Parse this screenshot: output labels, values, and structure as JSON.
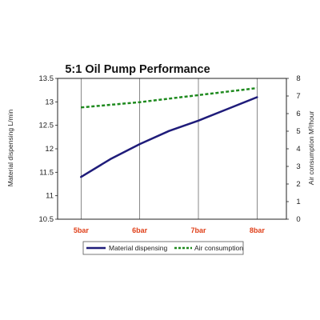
{
  "chart_data": {
    "type": "line",
    "title": "5:1 Oil Pump Performance",
    "categories": [
      "5bar",
      "6bar",
      "7bar",
      "8bar"
    ],
    "x": [
      5,
      6,
      7,
      8
    ],
    "xlim": [
      4.6,
      8.5
    ],
    "ylabel_left": "Material dispensing L/min",
    "ylabel_right": "Air consumption M³/hour",
    "ylim_left": [
      10.5,
      13.5
    ],
    "yticks_left": [
      "10.5",
      "11",
      "11.5",
      "12",
      "12.5",
      "13",
      "13.5"
    ],
    "ylim_right": [
      0,
      8
    ],
    "yticks_right": [
      "0",
      "1",
      "2",
      "3",
      "4",
      "5",
      "6",
      "7",
      "8"
    ],
    "grid": "vertical",
    "legend_position": "bottom",
    "colors": {
      "material": "#1f1c7a",
      "air": "#1e8a1e",
      "xtick": "#e0401a",
      "grid": "#555555"
    },
    "series": [
      {
        "name": "Material dispensing",
        "axis": "left",
        "style": "solid",
        "points": [
          [
            5,
            11.4
          ],
          [
            5.5,
            11.78
          ],
          [
            6,
            12.1
          ],
          [
            6.5,
            12.38
          ],
          [
            7,
            12.6
          ],
          [
            7.5,
            12.85
          ],
          [
            8,
            13.1
          ]
        ]
      },
      {
        "name": "Air consumption",
        "axis": "right",
        "style": "dashed",
        "points": [
          [
            5,
            6.35
          ],
          [
            6,
            6.65
          ],
          [
            7,
            7.05
          ],
          [
            8,
            7.45
          ]
        ]
      }
    ]
  }
}
